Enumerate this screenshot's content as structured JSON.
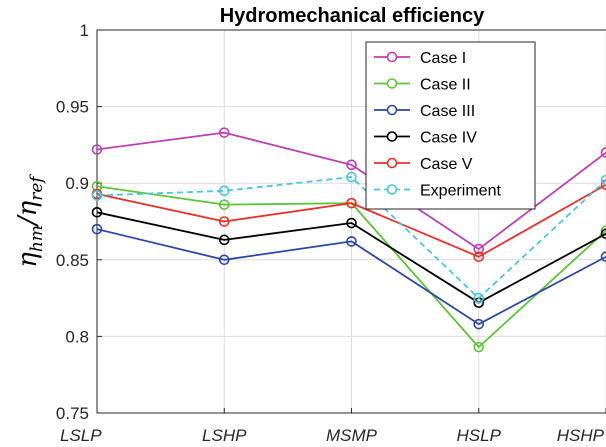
{
  "chart_data": {
    "type": "line",
    "title": "Hydromechanical efficiency",
    "xlabel": "",
    "ylabel": {
      "symbol": "η",
      "numerator_sub": "hm",
      "separator": "/",
      "denominator_sub": "ref"
    },
    "categories": [
      "LSLP",
      "LSHP",
      "MSMP",
      "HSLP",
      "HSHP"
    ],
    "ylim": [
      0.75,
      1.0
    ],
    "yticks": [
      {
        "value": 0.75,
        "label": "0.75"
      },
      {
        "value": 0.8,
        "label": "0.8"
      },
      {
        "value": 0.85,
        "label": "0.85"
      },
      {
        "value": 0.9,
        "label": "0.9"
      },
      {
        "value": 0.95,
        "label": "0.95"
      },
      {
        "value": 1.0,
        "label": "1"
      }
    ],
    "grid": true,
    "legend_position": "top-right",
    "series": [
      {
        "name": "Case I",
        "color": "#b941b3",
        "dashed": false,
        "values": [
          0.922,
          0.933,
          0.912,
          0.857,
          0.92
        ]
      },
      {
        "name": "Case II",
        "color": "#5ec23c",
        "dashed": false,
        "values": [
          0.898,
          0.886,
          0.887,
          0.793,
          0.869
        ]
      },
      {
        "name": "Case III",
        "color": "#2e47a3",
        "dashed": false,
        "values": [
          0.87,
          0.85,
          0.862,
          0.808,
          0.852
        ]
      },
      {
        "name": "Case IV",
        "color": "#000000",
        "dashed": false,
        "values": [
          0.881,
          0.863,
          0.874,
          0.822,
          0.867
        ]
      },
      {
        "name": "Case V",
        "color": "#e8302b",
        "dashed": false,
        "values": [
          0.893,
          0.875,
          0.887,
          0.852,
          0.899
        ]
      },
      {
        "name": "Experiment",
        "color": "#4ec4d8",
        "dashed": true,
        "values": [
          0.892,
          0.895,
          0.904,
          0.825,
          0.902
        ]
      }
    ]
  }
}
